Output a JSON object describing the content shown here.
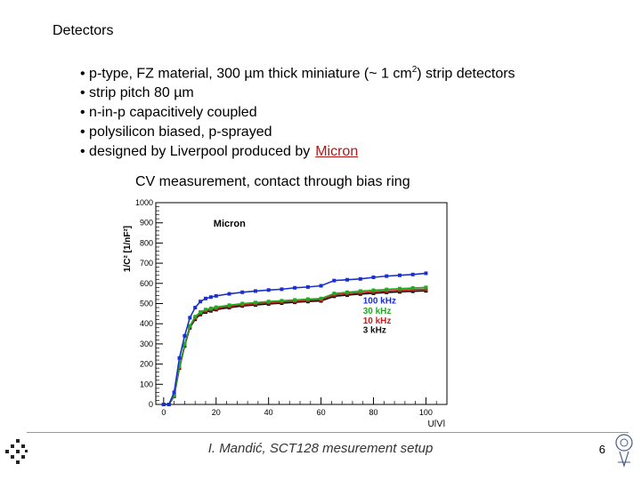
{
  "slide": {
    "title": "Detectors",
    "bullets": [
      {
        "prefix": "• p-type, FZ material, 300 µm thick miniature (~ 1 cm",
        "sup": "2",
        "suffix": ") strip detectors"
      },
      {
        "text": "• strip pitch 80 µm"
      },
      {
        "text": "• n-in-p capacitively coupled"
      },
      {
        "text": "• polysilicon biased, p-sprayed"
      },
      {
        "text": "• designed by Liverpool produced by",
        "link": "Micron"
      }
    ],
    "chart_caption": "CV measurement, contact through bias ring",
    "footer": "I. Mandić, SCT128 mesurement setup",
    "page_number": "6"
  },
  "chart_data": {
    "type": "line",
    "title": "CV measurement, contact through bias ring",
    "xlabel": "U[V]",
    "ylabel": "1/C² [1/nF²]",
    "xlim": [
      -3,
      108
    ],
    "ylim": [
      0,
      1000
    ],
    "x_ticks": [
      0,
      20,
      40,
      60,
      80,
      100
    ],
    "y_ticks": [
      0,
      100,
      200,
      300,
      400,
      500,
      600,
      700,
      800,
      900,
      1000
    ],
    "annotation": "Micron",
    "series": [
      {
        "name": "100 kHz",
        "color": "#1a2fd0",
        "x": [
          0,
          2,
          4,
          6,
          8,
          10,
          12,
          14,
          16,
          18,
          20,
          25,
          30,
          35,
          40,
          45,
          50,
          55,
          60,
          65,
          70,
          75,
          80,
          85,
          90,
          95,
          100
        ],
        "y": [
          0,
          0,
          60,
          230,
          340,
          430,
          480,
          510,
          525,
          532,
          538,
          548,
          556,
          562,
          567,
          571,
          578,
          582,
          588,
          614,
          618,
          622,
          630,
          636,
          640,
          644,
          650
        ]
      },
      {
        "name": "30 kHz",
        "color": "#22aa22",
        "x": [
          0,
          2,
          4,
          6,
          8,
          10,
          12,
          14,
          16,
          18,
          20,
          25,
          30,
          35,
          40,
          45,
          50,
          55,
          60,
          65,
          70,
          75,
          80,
          85,
          90,
          95,
          100
        ],
        "y": [
          0,
          0,
          45,
          190,
          300,
          390,
          435,
          458,
          470,
          476,
          482,
          492,
          500,
          505,
          510,
          514,
          518,
          522,
          525,
          550,
          556,
          562,
          566,
          570,
          574,
          577,
          580
        ]
      },
      {
        "name": "10 kHz",
        "color": "#c81e1e",
        "x": [
          0,
          2,
          4,
          6,
          8,
          10,
          12,
          14,
          16,
          18,
          20,
          25,
          30,
          35,
          40,
          45,
          50,
          55,
          60,
          65,
          70,
          75,
          80,
          85,
          90,
          95,
          100
        ],
        "y": [
          0,
          0,
          42,
          185,
          295,
          385,
          428,
          452,
          464,
          470,
          476,
          486,
          494,
          499,
          504,
          508,
          512,
          516,
          519,
          543,
          549,
          554,
          558,
          562,
          566,
          569,
          571
        ]
      },
      {
        "name": "3 kHz",
        "color": "#111111",
        "x": [
          0,
          2,
          4,
          6,
          8,
          10,
          12,
          14,
          16,
          18,
          20,
          25,
          30,
          35,
          40,
          45,
          50,
          55,
          60,
          65,
          70,
          75,
          80,
          85,
          90,
          95,
          100
        ],
        "y": [
          0,
          0,
          40,
          180,
          290,
          380,
          422,
          446,
          458,
          464,
          470,
          480,
          488,
          493,
          498,
          502,
          506,
          510,
          513,
          536,
          542,
          547,
          551,
          555,
          558,
          561,
          563
        ]
      }
    ]
  }
}
